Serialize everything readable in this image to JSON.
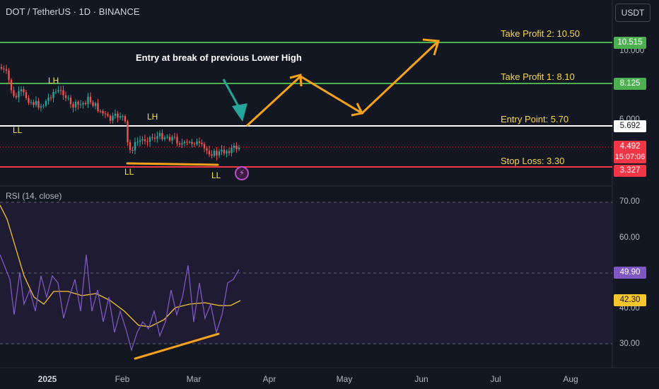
{
  "header": {
    "symbol": "DOT / TetherUS · 1D · BINANCE",
    "currency": "USDT"
  },
  "rsi_panel": {
    "label": "RSI (14, close)"
  },
  "annotations": {
    "entry_note": "Entry at break of previous Lower High",
    "take_profit_2": "Take Profit 2: 10.50",
    "take_profit_1": "Take Profit 1: 8.10",
    "entry_point": "Entry Point: 5.70",
    "stop_loss": "Stop Loss: 3.30",
    "waves": [
      "LH",
      "LL",
      "LH",
      "LL",
      "LL"
    ]
  },
  "price_tags": {
    "tp2": "10.515",
    "tp1": "8.125",
    "entry": "5.692",
    "last": "4.492",
    "countdown": "15:07:06",
    "stop": "3.327"
  },
  "price_axis": {
    "ticks": [
      "10.000",
      "6.000"
    ]
  },
  "rsi_axis": {
    "ticks": [
      "70.00",
      "60.00",
      "40.00",
      "30.00"
    ],
    "rsi_value": "49.90",
    "ma_value": "42.30"
  },
  "time_axis": {
    "labels": [
      "2025",
      "Feb",
      "Mar",
      "Apr",
      "May",
      "Jun",
      "Jul",
      "Aug"
    ]
  },
  "colors": {
    "background": "#131722",
    "take_profit_line": "#4caf50",
    "entry_line": "#ffffff",
    "stop_line": "#f23645",
    "up_candle": "#26a69a",
    "down_candle": "#ef5350",
    "arrow": "#f7a21b",
    "rsi_line": "#7e57c2",
    "rsi_ma": "#f7c52c",
    "rsi_band": "#1e1b33"
  }
}
